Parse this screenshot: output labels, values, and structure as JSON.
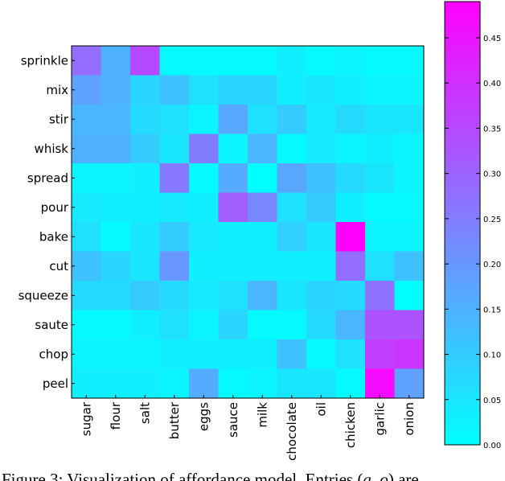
{
  "chart_data": {
    "type": "heatmap",
    "x": [
      "sugar",
      "flour",
      "salt",
      "butter",
      "eggs",
      "sauce",
      "milk",
      "chocolate",
      "oil",
      "chicken",
      "garlic",
      "onion"
    ],
    "y": [
      "sprinkle",
      "mix",
      "stir",
      "whisk",
      "spread",
      "pour",
      "bake",
      "cut",
      "squeeze",
      "saute",
      "chop",
      "peel"
    ],
    "values": [
      [
        0.28,
        0.15,
        0.35,
        0.01,
        0.01,
        0.01,
        0.01,
        0.03,
        0.01,
        0.02,
        0.01,
        0.01
      ],
      [
        0.18,
        0.15,
        0.08,
        0.12,
        0.06,
        0.08,
        0.08,
        0.03,
        0.05,
        0.03,
        0.02,
        0.02
      ],
      [
        0.14,
        0.14,
        0.07,
        0.06,
        0.02,
        0.17,
        0.06,
        0.1,
        0.04,
        0.07,
        0.05,
        0.05
      ],
      [
        0.15,
        0.15,
        0.1,
        0.05,
        0.25,
        0.02,
        0.14,
        0.01,
        0.04,
        0.02,
        0.03,
        0.02
      ],
      [
        0.02,
        0.02,
        0.03,
        0.26,
        0.01,
        0.16,
        0.0,
        0.17,
        0.12,
        0.07,
        0.05,
        0.02
      ],
      [
        0.04,
        0.03,
        0.03,
        0.04,
        0.03,
        0.31,
        0.23,
        0.06,
        0.1,
        0.03,
        0.01,
        0.01
      ],
      [
        0.06,
        0.01,
        0.05,
        0.1,
        0.04,
        0.03,
        0.03,
        0.09,
        0.05,
        0.49,
        0.02,
        0.02
      ],
      [
        0.12,
        0.08,
        0.05,
        0.2,
        0.03,
        0.03,
        0.03,
        0.03,
        0.03,
        0.28,
        0.06,
        0.12
      ],
      [
        0.07,
        0.07,
        0.1,
        0.07,
        0.04,
        0.06,
        0.14,
        0.05,
        0.08,
        0.07,
        0.27,
        0.0
      ],
      [
        0.01,
        0.01,
        0.03,
        0.06,
        0.02,
        0.08,
        0.01,
        0.01,
        0.07,
        0.14,
        0.33,
        0.33
      ],
      [
        0.02,
        0.02,
        0.02,
        0.03,
        0.03,
        0.03,
        0.03,
        0.12,
        0.01,
        0.06,
        0.37,
        0.39
      ],
      [
        0.03,
        0.03,
        0.03,
        0.02,
        0.16,
        0.01,
        0.02,
        0.05,
        0.05,
        0.01,
        0.47,
        0.18
      ]
    ],
    "colormap": [
      "#00ffff",
      "#ff00ff"
    ],
    "clim": [
      0,
      0.49
    ],
    "cticks": [
      {
        "value": 0,
        "label": "0.00"
      },
      {
        "value": 0.05,
        "label": "0.05"
      },
      {
        "value": 0.1,
        "label": "0.10"
      },
      {
        "value": 0.15,
        "label": "0.15"
      },
      {
        "value": 0.2,
        "label": "0.20"
      },
      {
        "value": 0.25,
        "label": "0.25"
      },
      {
        "value": 0.3,
        "label": "0.30"
      },
      {
        "value": 0.35,
        "label": "0.35"
      },
      {
        "value": 0.4,
        "label": "0.40"
      },
      {
        "value": 0.45,
        "label": "0.45"
      }
    ]
  },
  "caption": {
    "before": "Figure 3: Visualization of affordance model. Entries (",
    "italic": "a, o",
    "after": ") are"
  }
}
